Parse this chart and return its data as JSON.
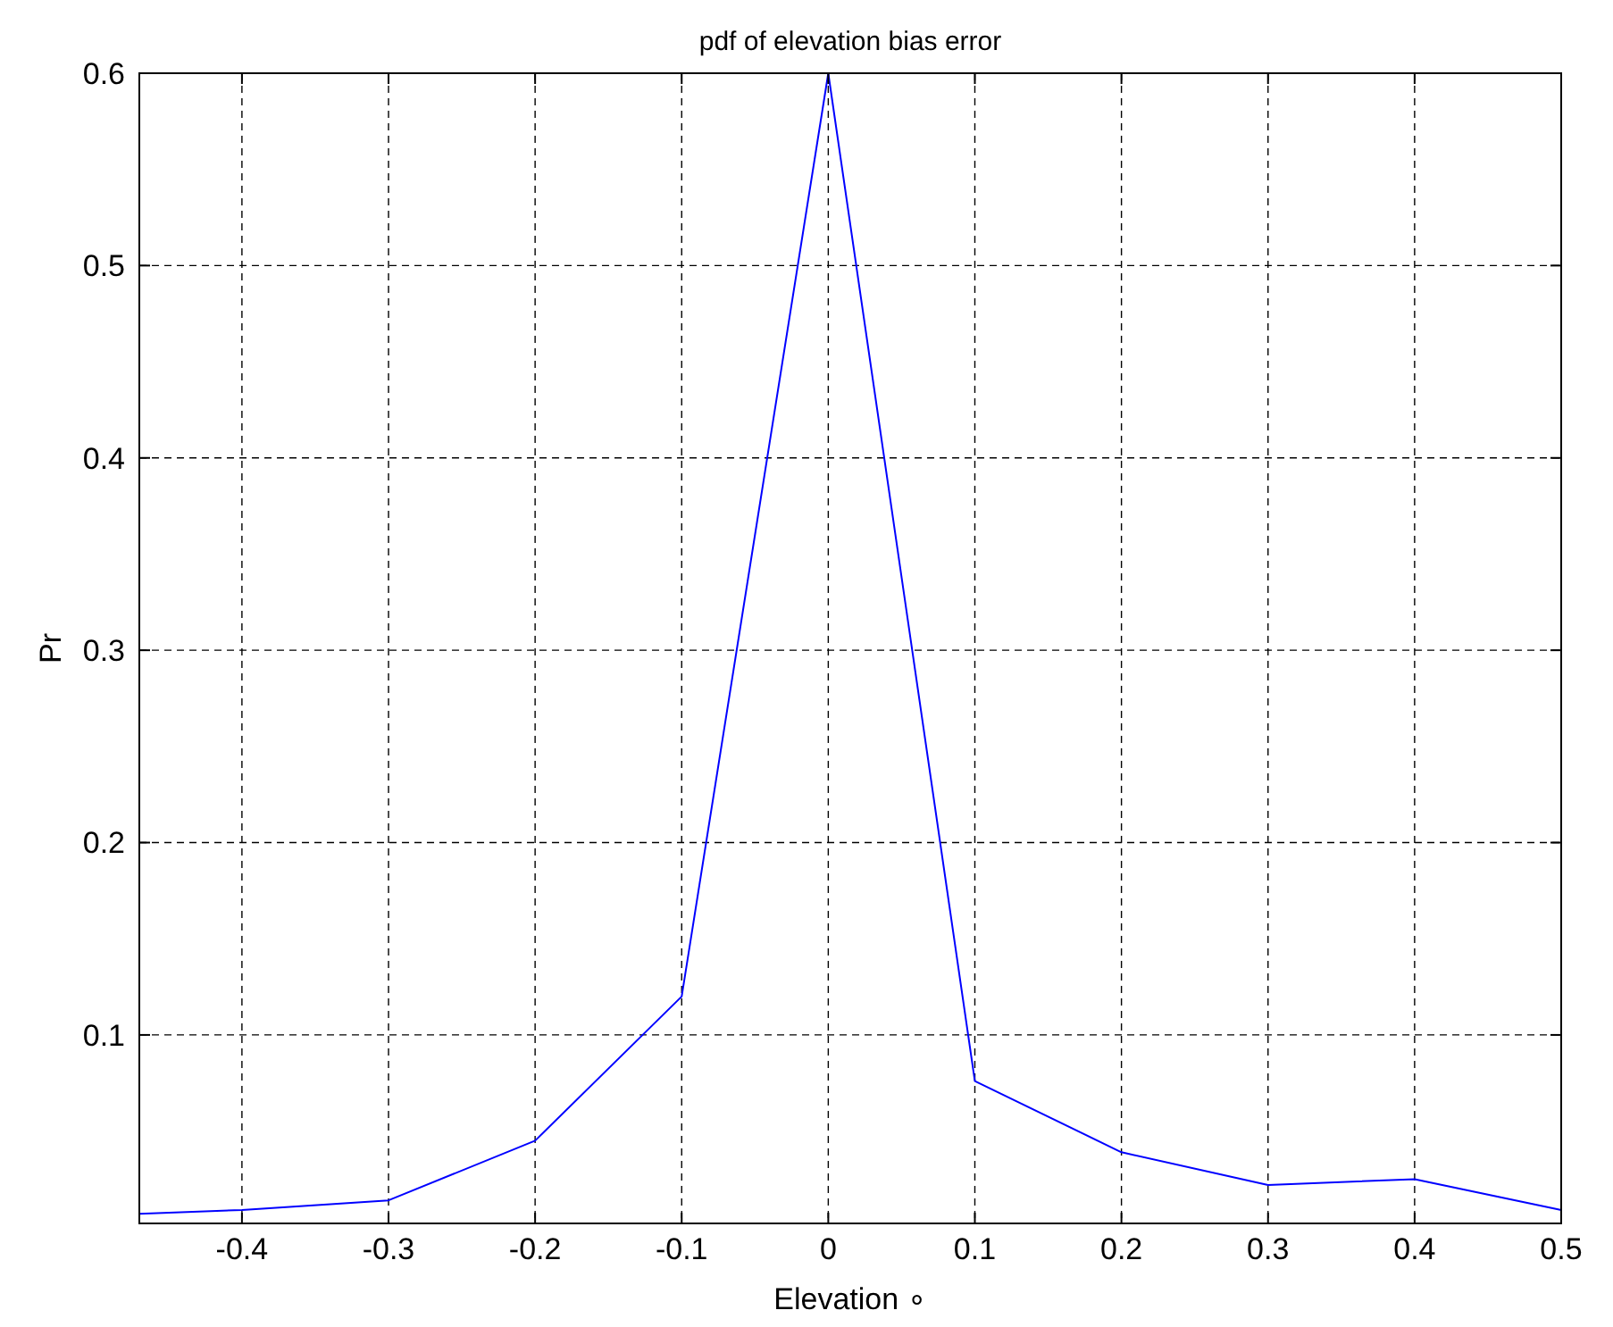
{
  "chart_data": {
    "type": "line",
    "title": "pdf of elevation bias error",
    "xlabel": "Elevation ∘",
    "ylabel": "Pr",
    "x": [
      -0.47,
      -0.4,
      -0.3,
      -0.2,
      -0.1,
      0,
      0.1,
      0.2,
      0.3,
      0.4,
      0.5
    ],
    "series": [
      {
        "color": "#0000ff",
        "values": [
          0.007,
          0.009,
          0.014,
          0.045,
          0.12,
          0.6,
          0.076,
          0.039,
          0.022,
          0.025,
          0.009
        ]
      }
    ],
    "xlim": [
      -0.47,
      0.5
    ],
    "xticks": [
      -0.4,
      -0.3,
      -0.2,
      -0.1,
      0,
      0.1,
      0.2,
      0.3,
      0.4,
      0.5
    ],
    "ylim": [
      0.002,
      0.6
    ],
    "yticks": [
      0.1,
      0.2,
      0.3,
      0.4,
      0.5,
      0.6
    ],
    "grid": true,
    "line_style": "solid",
    "marker": "none"
  }
}
